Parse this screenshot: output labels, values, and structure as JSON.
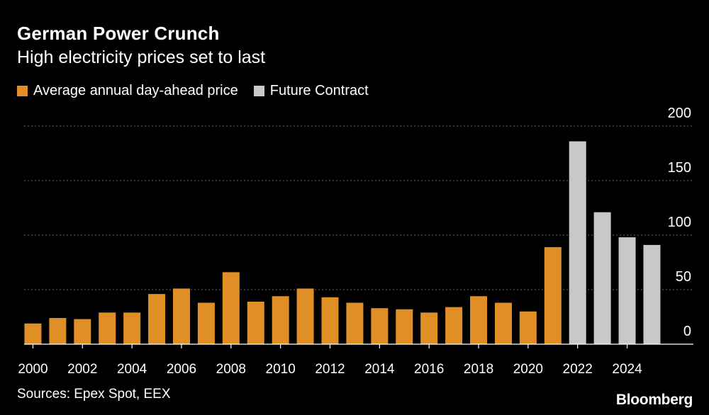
{
  "header": {
    "title": "German Power Crunch",
    "subtitle": "High electricity prices set to last"
  },
  "legend": [
    {
      "label": "Average annual day-ahead price",
      "color": "#e08f26"
    },
    {
      "label": "Future Contract",
      "color": "#c8c8c8"
    }
  ],
  "chart_data": {
    "type": "bar",
    "title": "German Power Crunch",
    "subtitle": "High electricity prices set to last",
    "xlabel": "",
    "ylabel": "",
    "ylim": [
      0,
      200
    ],
    "yticks": [
      0,
      50,
      100,
      150,
      200
    ],
    "y_axis_position": "right",
    "grid": true,
    "legend_position": "top-left",
    "x_tick_labels": [
      "2000",
      "2002",
      "2004",
      "2006",
      "2008",
      "2010",
      "2012",
      "2014",
      "2016",
      "2018",
      "2020",
      "2022",
      "2024"
    ],
    "categories": [
      "2000",
      "2001",
      "2002",
      "2003",
      "2004",
      "2005",
      "2006",
      "2007",
      "2008",
      "2009",
      "2010",
      "2011",
      "2012",
      "2013",
      "2014",
      "2015",
      "2016",
      "2017",
      "2018",
      "2019",
      "2020",
      "2021",
      "2022",
      "2023",
      "2024",
      "2025"
    ],
    "series": [
      {
        "name": "Average annual day-ahead price",
        "color": "#e08f26",
        "values": [
          19,
          24,
          23,
          29,
          29,
          46,
          51,
          38,
          66,
          39,
          44,
          51,
          43,
          38,
          33,
          32,
          29,
          34,
          44,
          38,
          30,
          89,
          null,
          null,
          null,
          null
        ]
      },
      {
        "name": "Future Contract",
        "color": "#c8c8c8",
        "values": [
          null,
          null,
          null,
          null,
          null,
          null,
          null,
          null,
          null,
          null,
          null,
          null,
          null,
          null,
          null,
          null,
          null,
          null,
          null,
          null,
          null,
          null,
          186,
          121,
          98,
          91
        ]
      }
    ]
  },
  "footer": {
    "source": "Sources: Epex Spot, EEX",
    "brand": "Bloomberg"
  }
}
